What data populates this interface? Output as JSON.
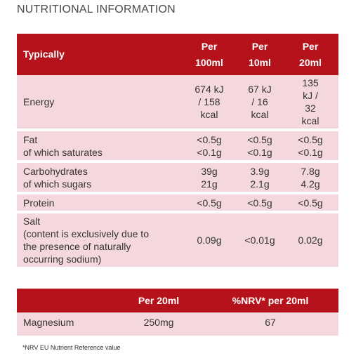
{
  "title": "NUTRITIONAL INFORMATION",
  "nutrition_table": {
    "header": {
      "label": "Typically",
      "col1": [
        "Per",
        "100ml"
      ],
      "col2": [
        "Per",
        "10ml"
      ],
      "col3": [
        "Per",
        "20ml"
      ]
    },
    "rows": [
      {
        "label": [
          "Energy"
        ],
        "col1": [
          "674 kJ",
          "/ 158",
          "kcal"
        ],
        "col2": [
          "67 kJ",
          "/ 16",
          "kcal"
        ],
        "col3": [
          "135",
          "kJ /",
          "32",
          "kcal"
        ]
      },
      {
        "label": [
          "Fat",
          "of which saturates"
        ],
        "col1": [
          "<0.5g",
          "<0.1g"
        ],
        "col2": [
          "<0.5g",
          "<0.1g"
        ],
        "col3": [
          "<0.5g",
          "<0.1g"
        ]
      },
      {
        "label": [
          "Carbohydrates",
          "of which sugars"
        ],
        "col1": [
          "39g",
          "21g"
        ],
        "col2": [
          "3.9g",
          "2.1g"
        ],
        "col3": [
          "7.8g",
          "4.2g"
        ]
      },
      {
        "label": [
          "Protein"
        ],
        "col1": [
          "<0.5g"
        ],
        "col2": [
          "<0.5g"
        ],
        "col3": [
          "<0.5g"
        ]
      },
      {
        "label": [
          "Salt",
          "(content is exclusively due to",
          "the presence of naturally",
          "occurring sodium)"
        ],
        "col1": [
          "0.09g"
        ],
        "col2": [
          "<0.01g"
        ],
        "col3": [
          "0.02g"
        ]
      }
    ]
  },
  "mineral_table": {
    "header": {
      "label": "",
      "col1": "Per 20ml",
      "col2": "%NRV* per 20ml"
    },
    "rows": [
      {
        "label": "Magnesium",
        "col1": "250mg",
        "col2": "67"
      }
    ]
  },
  "footnote": "*NRV EU Nutrient Reference value",
  "colors": {
    "header_bg": "#b5121b",
    "row_bg": "#f5d8dd",
    "text": "#333333"
  }
}
